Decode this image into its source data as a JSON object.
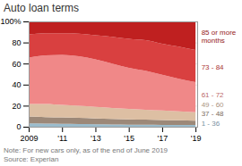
{
  "chart_data": {
    "type": "area",
    "title": "Auto loan terms",
    "stacked": true,
    "x": [
      2009,
      2010,
      2011,
      2012,
      2013,
      2014,
      2015,
      2016,
      2017,
      2018,
      2019
    ],
    "series": [
      {
        "name": "1 - 36",
        "color": "#9bbccc",
        "values": [
          3.2,
          3.0,
          2.8,
          2.6,
          2.4,
          2.2,
          2.0,
          1.9,
          1.8,
          1.7,
          1.6
        ]
      },
      {
        "name": "37 - 48",
        "color": "#9c8878",
        "values": [
          6.5,
          6.2,
          6.0,
          5.8,
          5.5,
          5.2,
          5.0,
          4.8,
          4.6,
          4.4,
          4.2
        ]
      },
      {
        "name": "49 - 60",
        "color": "#ddbfa3",
        "values": [
          12.0,
          12.5,
          12.0,
          11.5,
          11.0,
          10.5,
          10.0,
          9.5,
          9.0,
          8.5,
          8.0
        ]
      },
      {
        "name": "61 - 72",
        "color": "#f08888",
        "values": [
          44.0,
          46.0,
          47.5,
          47.0,
          45.0,
          42.0,
          39.0,
          37.0,
          34.0,
          31.0,
          28.5
        ]
      },
      {
        "name": "73 - 84",
        "color": "#d94040",
        "values": [
          22.0,
          21.0,
          20.5,
          21.5,
          23.0,
          25.5,
          27.5,
          29.0,
          29.5,
          30.5,
          30.5
        ]
      },
      {
        "name": "85 or more\nmonths",
        "color": "#bf2020",
        "values": [
          12.3,
          11.3,
          11.2,
          11.6,
          13.1,
          14.6,
          16.5,
          17.8,
          21.1,
          23.9,
          27.2
        ]
      }
    ],
    "xlim": [
      2009,
      2019.1
    ],
    "xticks": [
      2009,
      {
        "value": 2011,
        "label": "'11"
      },
      {
        "value": 2013,
        "label": "'13"
      },
      {
        "value": 2015,
        "label": "'15"
      },
      {
        "value": 2017,
        "label": "'17"
      },
      {
        "value": 2019,
        "label": "'19"
      }
    ],
    "ylim": [
      0,
      100
    ],
    "yticks": [
      {
        "value": 100,
        "label": "100%"
      },
      80,
      60,
      40,
      20,
      0
    ],
    "grid": true,
    "annotations": [
      "Note: For new cars only, as of the end of June 2019",
      "Source: Experian"
    ]
  }
}
